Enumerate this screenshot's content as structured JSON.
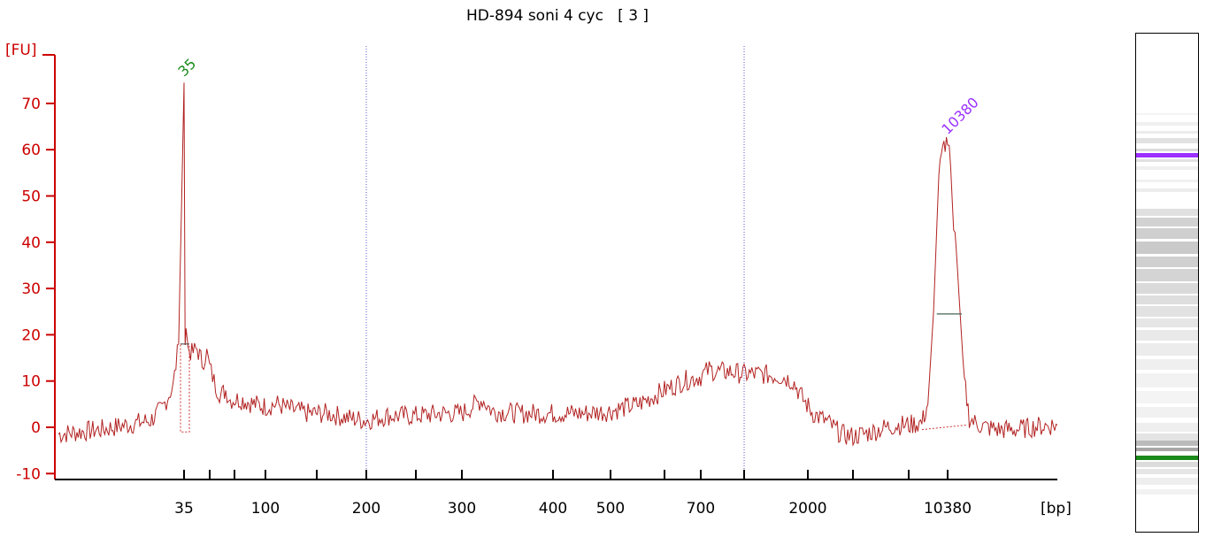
{
  "chart_data": {
    "type": "line",
    "title": "HD-894 soni 4 cyc   [ 3 ]",
    "ylabel": "[FU]",
    "xlabel": "[bp]",
    "ylim": [
      -10,
      80
    ],
    "y_ticks": [
      -10,
      0,
      10,
      20,
      30,
      40,
      50,
      60,
      70
    ],
    "x_tick_labels": [
      "35",
      "100",
      "200",
      "300",
      "400",
      "500",
      "700",
      "2000",
      "10380"
    ],
    "x_ticks_bp": [
      35,
      50,
      75,
      100,
      150,
      200,
      250,
      300,
      400,
      500,
      600,
      700,
      1000,
      2000,
      3000,
      7000,
      10380
    ],
    "grid": "vertical dotted lines at 200 and 1000 bp",
    "peaks": [
      {
        "label": "35",
        "size_bp": 35,
        "height_fu": 74.5,
        "color": "#1a8a1a"
      },
      {
        "label": "10380",
        "size_bp": 10380,
        "height_fu": 62,
        "color": "#9b30ff"
      }
    ],
    "series": [
      {
        "color": "#b22222",
        "points": [
          [
            25,
            -1.5
          ],
          [
            28,
            -0.5
          ],
          [
            30,
            0.5
          ],
          [
            32,
            1.5
          ],
          [
            33,
            4
          ],
          [
            34,
            9
          ],
          [
            34.5,
            18
          ],
          [
            35,
            74.5
          ],
          [
            35.5,
            20
          ],
          [
            36,
            22
          ],
          [
            37,
            17
          ],
          [
            39,
            16
          ],
          [
            42,
            17
          ],
          [
            45,
            14
          ],
          [
            48,
            16
          ],
          [
            50,
            13
          ],
          [
            55,
            9
          ],
          [
            60,
            7
          ],
          [
            65,
            8
          ],
          [
            70,
            6
          ],
          [
            80,
            6
          ],
          [
            90,
            5
          ],
          [
            100,
            4.5
          ],
          [
            110,
            5
          ],
          [
            120,
            4
          ],
          [
            140,
            3
          ],
          [
            160,
            3
          ],
          [
            180,
            2
          ],
          [
            200,
            1.5
          ],
          [
            220,
            2.5
          ],
          [
            250,
            2.5
          ],
          [
            280,
            3
          ],
          [
            300,
            3
          ],
          [
            320,
            6
          ],
          [
            330,
            3.5
          ],
          [
            360,
            3
          ],
          [
            400,
            3
          ],
          [
            450,
            3
          ],
          [
            500,
            3.5
          ],
          [
            550,
            5
          ],
          [
            600,
            8
          ],
          [
            650,
            10
          ],
          [
            700,
            11
          ],
          [
            750,
            12.5
          ],
          [
            800,
            12
          ],
          [
            900,
            12
          ],
          [
            1000,
            11.5
          ],
          [
            1200,
            11.5
          ],
          [
            1500,
            11
          ],
          [
            1700,
            10
          ],
          [
            1900,
            6
          ],
          [
            2100,
            3
          ],
          [
            2400,
            1
          ],
          [
            2700,
            -1.5
          ],
          [
            3000,
            -2
          ],
          [
            4000,
            -1
          ],
          [
            5000,
            0
          ],
          [
            6000,
            0.5
          ],
          [
            7000,
            0.5
          ],
          [
            8000,
            1
          ],
          [
            8500,
            5
          ],
          [
            9000,
            25
          ],
          [
            9500,
            55
          ],
          [
            10000,
            61
          ],
          [
            10380,
            62
          ],
          [
            10700,
            56
          ],
          [
            11000,
            42
          ],
          [
            11300,
            38
          ],
          [
            11700,
            25
          ],
          [
            12200,
            10
          ],
          [
            12800,
            2
          ],
          [
            13500,
            1
          ],
          [
            15000,
            0
          ],
          [
            17000,
            -0.5
          ],
          [
            20000,
            -0.5
          ],
          [
            25000,
            0.2
          ],
          [
            30000,
            0.5
          ]
        ]
      }
    ]
  }
}
